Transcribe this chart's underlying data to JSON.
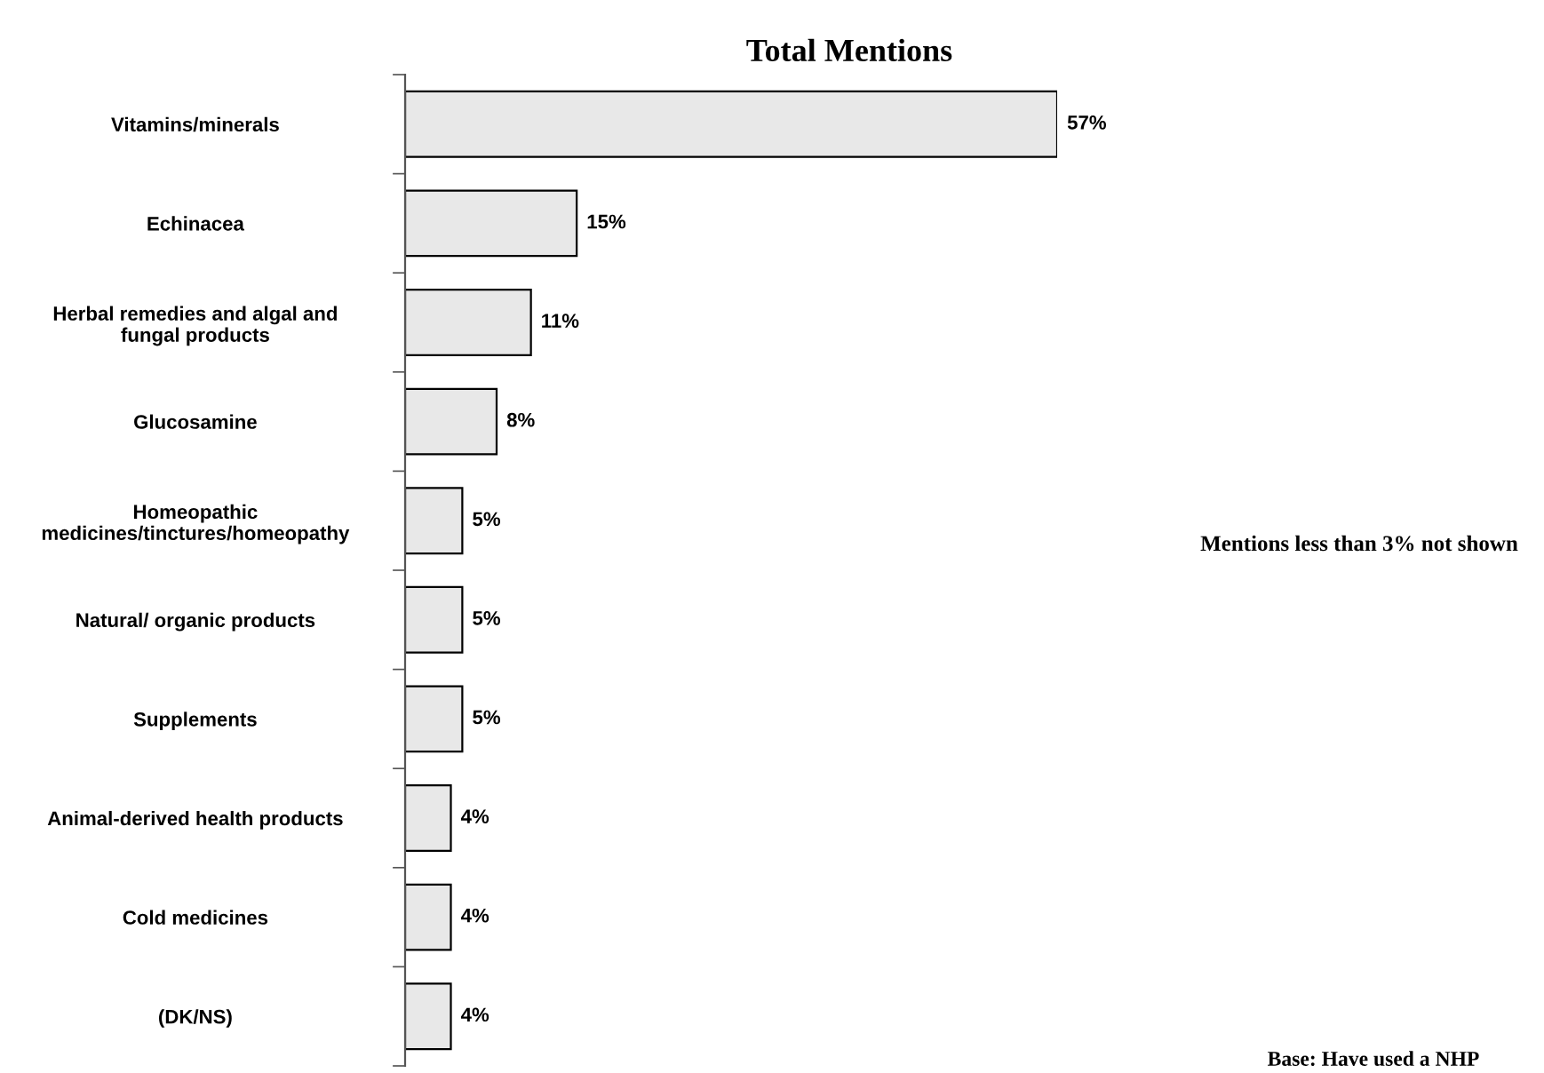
{
  "chart_data": {
    "type": "bar",
    "orientation": "horizontal",
    "title": "Total Mentions",
    "categories": [
      "Vitamins/minerals",
      "Echinacea",
      "Herbal remedies and algal and\nfungal products",
      "Glucosamine",
      "Homeopathic\nmedicines/tinctures/homeopathy",
      "Natural/ organic products",
      "Supplements",
      "Animal-derived health products",
      "Cold medicines",
      "(DK/NS)"
    ],
    "values": [
      57,
      15,
      11,
      8,
      5,
      5,
      5,
      4,
      4,
      4
    ],
    "value_labels": [
      "57%",
      "15%",
      "11%",
      "8%",
      "5%",
      "5%",
      "5%",
      "4%",
      "4%",
      "4%"
    ],
    "color": "#e8e8e8",
    "annotations": [
      "Mentions less than 3% not shown",
      "Base: Have used a NHP"
    ]
  }
}
